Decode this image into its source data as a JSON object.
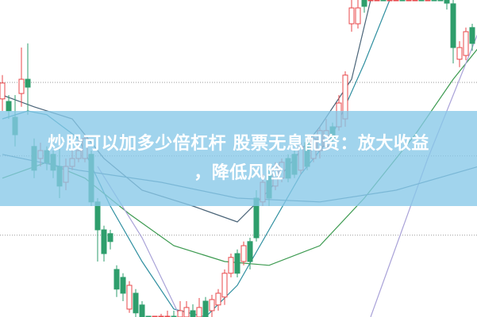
{
  "headline": {
    "line1": "炒股可以加多少倍杠杆 股票无息配资：放大收益",
    "line2": "，降低风险"
  },
  "colors": {
    "up": "#e8474a",
    "down": "#2e9e6c",
    "banner": "#87c8e8",
    "grid": "#9a9a9a"
  },
  "chart_data": {
    "type": "candlestick",
    "ylim": [
      0,
      100
    ],
    "grid": true,
    "candles_ohlc": [
      [
        68.8,
        73.8,
        76.3,
        65
      ],
      [
        68,
        65,
        70,
        62.5
      ],
      [
        63,
        57.5,
        70,
        53.8
      ],
      [
        70.5,
        75,
        85,
        66.3
      ],
      [
        75,
        72.5,
        86.3,
        63.8
      ],
      [
        53.8,
        46.3,
        56.3,
        43.8
      ],
      [
        50,
        52.5,
        55,
        47.5
      ],
      [
        52.5,
        48.8,
        53.8,
        46.3
      ],
      [
        51.3,
        46.3,
        52.5,
        43.8
      ],
      [
        47.5,
        41.3,
        53.8,
        37.5
      ],
      [
        42.5,
        47.5,
        50,
        40
      ],
      [
        47.5,
        50,
        52.5,
        46.3
      ],
      [
        50,
        52.5,
        56.3,
        48.8
      ],
      [
        50,
        56.3,
        57.5,
        48.8
      ],
      [
        51.3,
        36.3,
        52.5,
        35
      ],
      [
        36.3,
        27.5,
        37.5,
        17.5
      ],
      [
        27.5,
        20,
        28.8,
        17.5
      ],
      [
        26.3,
        23.8,
        27.5,
        21.3
      ],
      [
        15,
        8.8,
        16.3,
        6.3
      ],
      [
        12.5,
        7.5,
        13.8,
        5
      ],
      [
        2.5,
        10,
        11.3,
        1.3
      ],
      [
        7.5,
        1.3,
        8.8,
        0
      ],
      [
        3.8,
        -2.5,
        5,
        -5
      ],
      [
        -5,
        -10,
        0,
        -12
      ],
      [
        -12,
        -6,
        -3,
        -14
      ],
      [
        -8,
        -2,
        1,
        -10
      ],
      [
        -4,
        -1,
        2,
        -6
      ],
      [
        0,
        -4,
        2,
        -7
      ],
      [
        -3,
        2,
        5,
        -5
      ],
      [
        0,
        3,
        5,
        -2
      ],
      [
        2,
        -2,
        4,
        -4
      ],
      [
        -1,
        3,
        6,
        -3
      ],
      [
        5,
        0,
        6.3,
        -2
      ],
      [
        2,
        5.5,
        7,
        0
      ],
      [
        3.8,
        7.5,
        8.8,
        2
      ],
      [
        6.3,
        13.8,
        15,
        3.8
      ],
      [
        13.8,
        18.8,
        20,
        12.5
      ],
      [
        20,
        13.8,
        21.3,
        12.5
      ],
      [
        17.5,
        22.5,
        23.8,
        16.3
      ],
      [
        23.8,
        17.5,
        25,
        15
      ],
      [
        37.5,
        25,
        40,
        23.8
      ],
      [
        36.3,
        42.5,
        45,
        35
      ],
      [
        45,
        37.5,
        46.3,
        35
      ],
      [
        41.3,
        47.5,
        48.8,
        40
      ],
      [
        43.8,
        48.8,
        50,
        42.5
      ],
      [
        50,
        43.8,
        51.3,
        42.5
      ],
      [
        51.3,
        45,
        52.5,
        43.8
      ],
      [
        46.3,
        53.8,
        55,
        45
      ],
      [
        55,
        47.5,
        56.3,
        46.3
      ],
      [
        50,
        56.3,
        57.5,
        48.8
      ],
      [
        52.5,
        58.8,
        60,
        50
      ],
      [
        53.8,
        58.8,
        62.5,
        52.5
      ],
      [
        60,
        56.3,
        61.3,
        55
      ],
      [
        60,
        67.5,
        70,
        58.8
      ],
      [
        62.5,
        76.3,
        77.5,
        60
      ],
      [
        92.5,
        97.5,
        100,
        90
      ],
      [
        92.5,
        97.5,
        100,
        91
      ],
      [
        103,
        98,
        105,
        96
      ],
      [
        102,
        106,
        108,
        100
      ],
      [
        106,
        110,
        112,
        104
      ],
      [
        108,
        104,
        111,
        102
      ],
      [
        104,
        109,
        111,
        103
      ],
      [
        109,
        113,
        115,
        107
      ],
      [
        112,
        108,
        114,
        106
      ],
      [
        108,
        112,
        114,
        107
      ],
      [
        112,
        116,
        118,
        110
      ],
      [
        115,
        111,
        117,
        109
      ],
      [
        110,
        114,
        116,
        108
      ],
      [
        113,
        108,
        115,
        106
      ],
      [
        108,
        104,
        110,
        100
      ],
      [
        104,
        99,
        106,
        97
      ],
      [
        98.8,
        85,
        102,
        80
      ],
      [
        81.3,
        85,
        87,
        78.8
      ],
      [
        82.5,
        90,
        91.3,
        81
      ],
      [
        91.3,
        86.3,
        92.5,
        84
      ]
    ],
    "moving_averages": [
      {
        "color": "#2f8fa0",
        "points": [
          [
            0,
            62.5
          ],
          [
            4,
            65
          ],
          [
            7,
            63.8
          ],
          [
            12,
            56.3
          ],
          [
            17,
            35
          ],
          [
            22,
            17.5
          ],
          [
            27,
            2.5
          ],
          [
            32,
            0
          ],
          [
            37,
            10
          ],
          [
            42,
            27.5
          ],
          [
            47,
            45
          ],
          [
            52,
            57.5
          ],
          [
            57,
            80
          ],
          [
            61,
            100
          ]
        ]
      },
      {
        "color": "#4a6478",
        "points": [
          [
            0,
            70
          ],
          [
            5,
            66.3
          ],
          [
            11,
            62.5
          ],
          [
            16,
            50
          ],
          [
            22,
            40
          ],
          [
            30,
            35
          ],
          [
            37,
            30
          ],
          [
            42,
            40
          ],
          [
            50,
            60
          ],
          [
            55,
            75
          ],
          [
            58,
            100
          ]
        ]
      },
      {
        "color": "#3c9a50",
        "points": [
          [
            0,
            43.8
          ],
          [
            7,
            48.8
          ],
          [
            13,
            43.8
          ],
          [
            20,
            32.5
          ],
          [
            27,
            22.5
          ],
          [
            35,
            17.5
          ],
          [
            42,
            16.3
          ],
          [
            50,
            22.5
          ],
          [
            57,
            37.5
          ],
          [
            65,
            57.5
          ],
          [
            71,
            75
          ],
          [
            75,
            85
          ]
        ]
      },
      {
        "color": "#a9a2d8",
        "points": [
          [
            15,
            47.5
          ],
          [
            22,
            25
          ],
          [
            28,
            0
          ]
        ]
      },
      {
        "color": "#a9a2d8",
        "points": [
          [
            58,
            0
          ],
          [
            67,
            50
          ],
          [
            75,
            90
          ]
        ]
      },
      {
        "color": "#4d7d96",
        "points": [
          [
            0,
            51.3
          ],
          [
            12,
            46.3
          ],
          [
            25,
            42.5
          ],
          [
            37,
            37.5
          ],
          [
            50,
            36.3
          ],
          [
            62,
            40
          ],
          [
            75,
            47.5
          ]
        ]
      }
    ],
    "gridlines": [
      74,
      50.8,
      25.8
    ]
  }
}
